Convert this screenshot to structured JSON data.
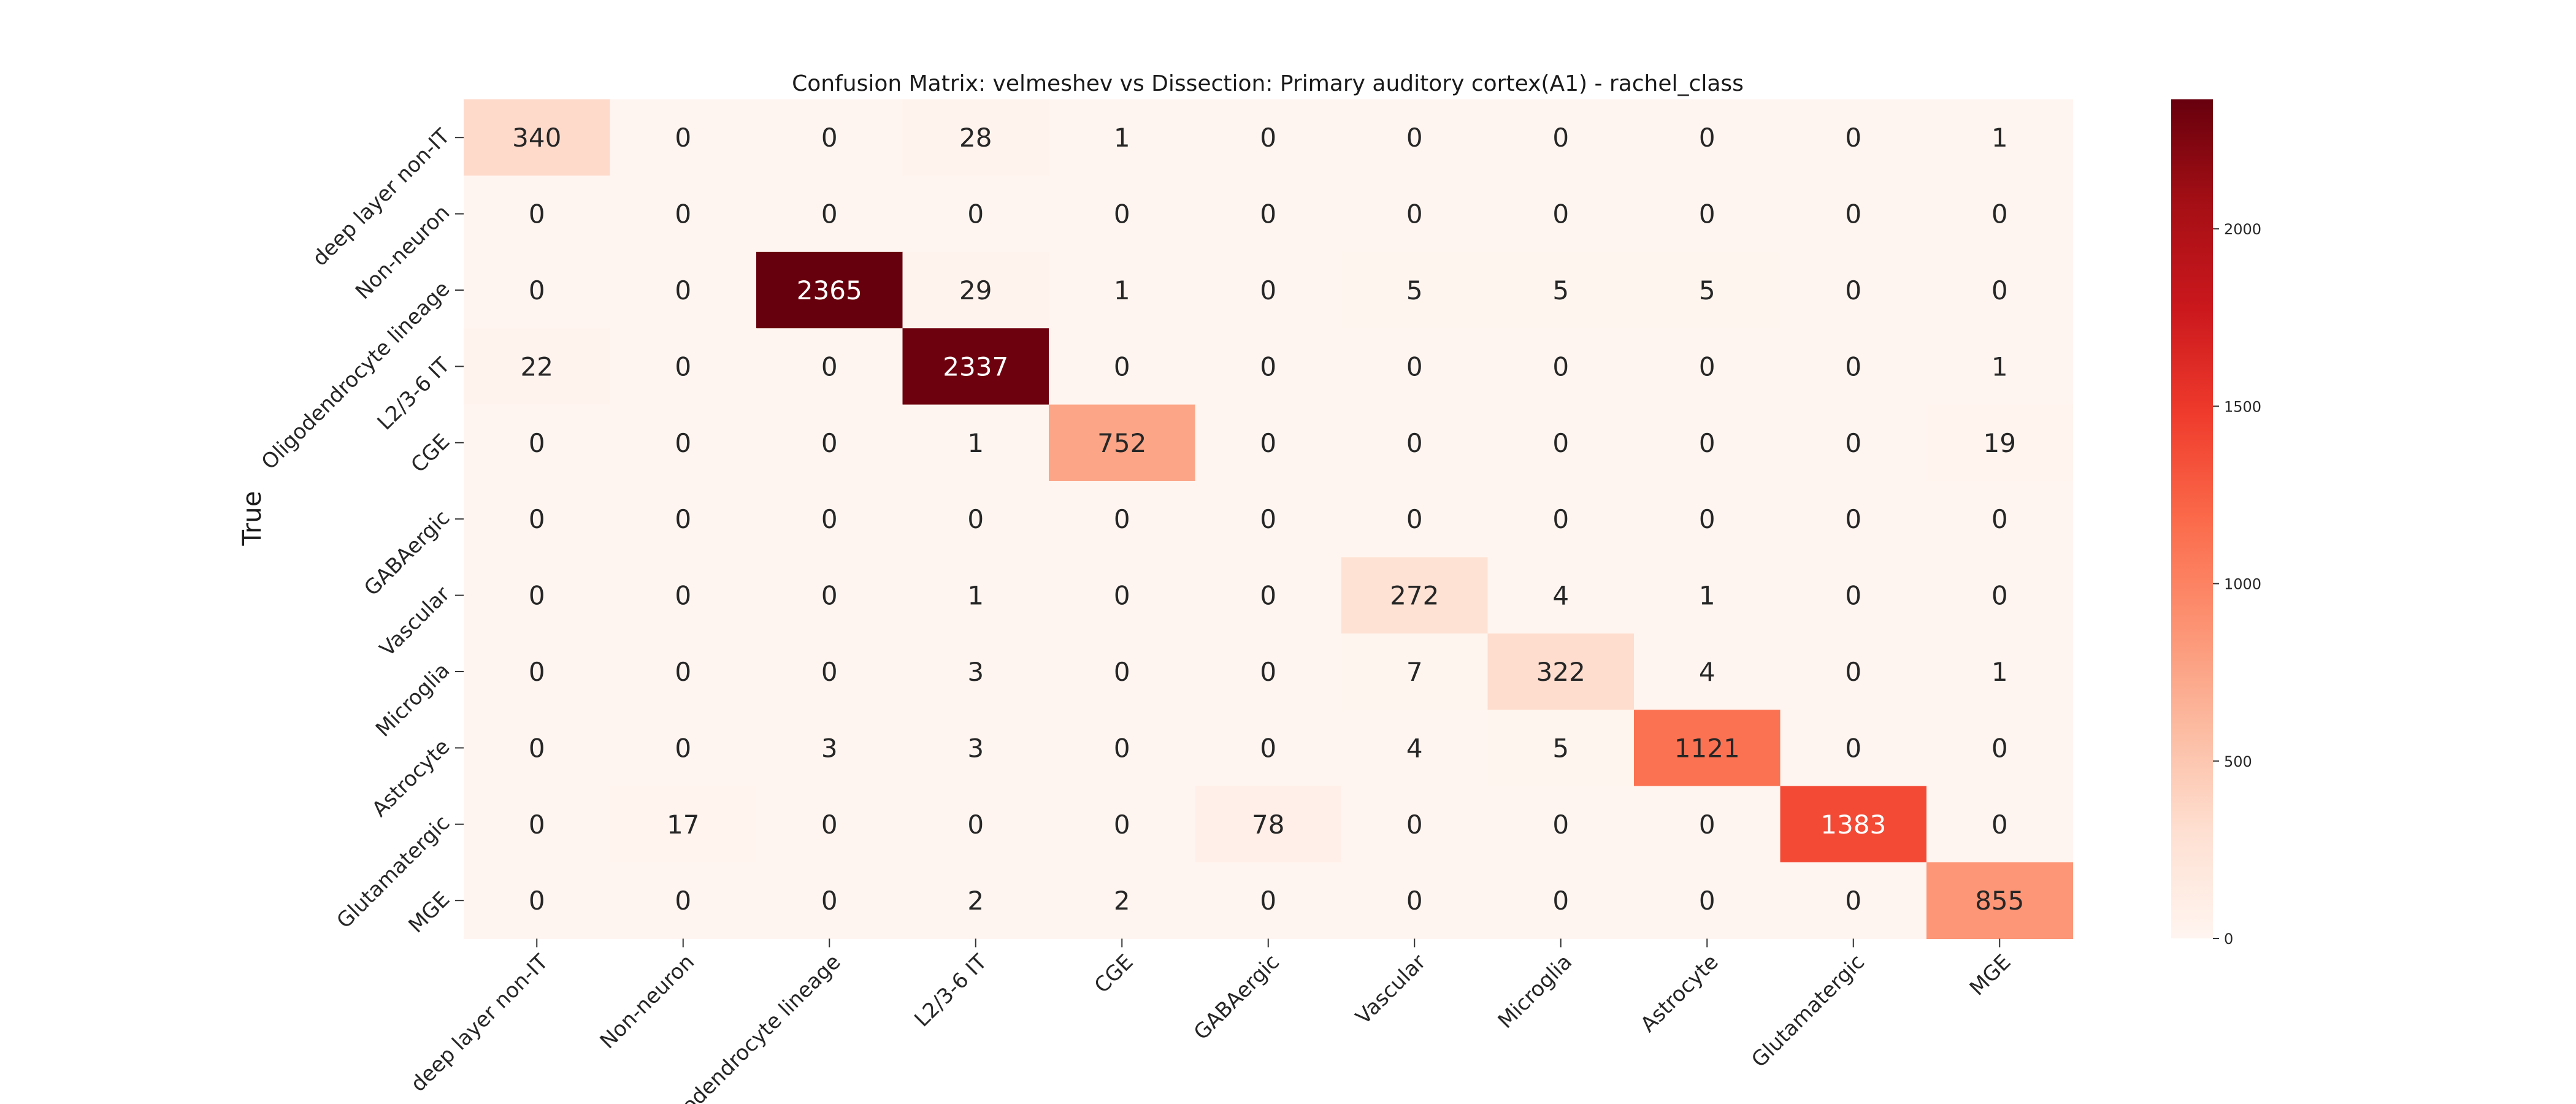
{
  "chart_data": {
    "type": "heatmap",
    "title": "Confusion Matrix: velmeshev vs Dissection: Primary auditory cortex(A1) - rachel_class",
    "ylabel": "True",
    "xlabel": "",
    "row_labels": [
      "deep layer non-IT",
      "Non-neuron",
      "Oligodendrocyte lineage",
      "L2/3-6 IT",
      "CGE",
      "GABAergic",
      "Vascular",
      "Microglia",
      "Astrocyte",
      "Glutamatergic",
      "MGE"
    ],
    "col_labels": [
      "deep layer non-IT",
      "Non-neuron",
      "Oligodendrocyte lineage",
      "L2/3-6 IT",
      "CGE",
      "GABAergic",
      "Vascular",
      "Microglia",
      "Astrocyte",
      "Glutamatergic",
      "MGE"
    ],
    "values": [
      [
        340,
        0,
        0,
        28,
        1,
        0,
        0,
        0,
        0,
        0,
        1
      ],
      [
        0,
        0,
        0,
        0,
        0,
        0,
        0,
        0,
        0,
        0,
        0
      ],
      [
        0,
        0,
        2365,
        29,
        1,
        0,
        5,
        5,
        5,
        0,
        0
      ],
      [
        22,
        0,
        0,
        2337,
        0,
        0,
        0,
        0,
        0,
        0,
        1
      ],
      [
        0,
        0,
        0,
        1,
        752,
        0,
        0,
        0,
        0,
        0,
        19
      ],
      [
        0,
        0,
        0,
        0,
        0,
        0,
        0,
        0,
        0,
        0,
        0
      ],
      [
        0,
        0,
        0,
        1,
        0,
        0,
        272,
        4,
        1,
        0,
        0
      ],
      [
        0,
        0,
        0,
        3,
        0,
        0,
        7,
        322,
        4,
        0,
        1
      ],
      [
        0,
        0,
        3,
        3,
        0,
        0,
        4,
        5,
        1121,
        0,
        0
      ],
      [
        0,
        17,
        0,
        0,
        0,
        78,
        0,
        0,
        0,
        1383,
        0
      ],
      [
        0,
        0,
        0,
        2,
        2,
        0,
        0,
        0,
        0,
        0,
        855
      ]
    ],
    "colorbar": {
      "range": [
        0,
        2365
      ],
      "ticks": [
        0,
        500,
        1000,
        1500,
        2000
      ],
      "colormap": "Reds",
      "low_color": "#fff5f0",
      "high_color": "#67000d"
    },
    "grid": false,
    "legend": "colorbar-right"
  }
}
